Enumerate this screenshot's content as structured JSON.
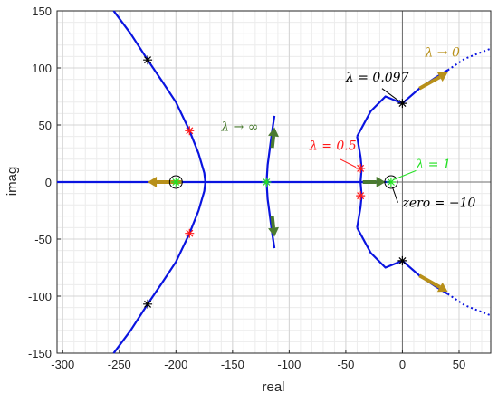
{
  "chart_data": {
    "type": "line",
    "title": "",
    "xlabel": "real",
    "ylabel": "imag",
    "xlim": [
      -305,
      78
    ],
    "ylim": [
      -150,
      150
    ],
    "grid": "major and minor",
    "x_ticks": [
      -300,
      -250,
      -200,
      -150,
      -100,
      -50,
      0,
      50
    ],
    "y_ticks": [
      -150,
      -100,
      -50,
      0,
      50,
      100,
      150
    ],
    "x_tick_labels": [
      "-300",
      "-250",
      "-200",
      "-150",
      "-100",
      "-50",
      "0",
      "50"
    ],
    "y_tick_labels": [
      "-150",
      "-100",
      "-50",
      "0",
      "50",
      "100",
      "150"
    ],
    "colors": {
      "locus": "#0a14e0",
      "arrow": "#b8901a",
      "green_arrow": "#4a7a30",
      "red_marker": "#ff1a1a",
      "black_marker": "#000000",
      "green_marker": "#22e022",
      "grid_minor": "#ececec",
      "grid_major": "#d4d4d4",
      "axis_line": "#6e6e6e"
    },
    "series": [
      {
        "points": [
          [
            -255,
            150
          ],
          [
            -240,
            130
          ],
          [
            -225,
            107
          ],
          [
            -212,
            88
          ],
          [
            -200,
            70
          ],
          [
            -188,
            45
          ],
          [
            -180,
            25
          ],
          [
            -175,
            8
          ],
          [
            -174,
            0
          ],
          [
            -175,
            -8
          ],
          [
            -180,
            -25
          ],
          [
            -188,
            -45
          ],
          [
            -200,
            -70
          ],
          [
            -212,
            -88
          ],
          [
            -225,
            -107
          ],
          [
            -240,
            -130
          ],
          [
            -255,
            -150
          ]
        ]
      },
      {
        "points": [
          [
            -113,
            58
          ],
          [
            -115,
            45
          ],
          [
            -117,
            30
          ],
          [
            -119,
            15
          ],
          [
            -120,
            0
          ],
          [
            -119,
            -15
          ],
          [
            -117,
            -30
          ],
          [
            -115,
            -45
          ],
          [
            -113,
            -58
          ]
        ]
      },
      {
        "points": [
          [
            -305,
            0
          ],
          [
            -10,
            0
          ]
        ]
      },
      {
        "points": [
          [
            -40,
            40
          ],
          [
            -37,
            22
          ],
          [
            -36,
            12
          ],
          [
            -37,
            0
          ],
          [
            -36,
            -12
          ],
          [
            -37,
            -22
          ],
          [
            -40,
            -40
          ]
        ]
      },
      {
        "points": [
          [
            -40,
            40
          ],
          [
            -28,
            62
          ],
          [
            -15,
            75
          ],
          [
            0,
            69
          ],
          [
            15,
            82
          ],
          [
            30,
            92
          ],
          [
            40,
            98
          ]
        ],
        "dotted_tail": [
          [
            40,
            98
          ],
          [
            55,
            108
          ],
          [
            78,
            117
          ]
        ]
      },
      {
        "points": [
          [
            -40,
            -40
          ],
          [
            -28,
            -62
          ],
          [
            -15,
            -75
          ],
          [
            0,
            -69
          ],
          [
            15,
            -82
          ],
          [
            30,
            -92
          ],
          [
            40,
            -98
          ]
        ],
        "dotted_tail": [
          [
            40,
            -98
          ],
          [
            55,
            -108
          ],
          [
            78,
            -117
          ]
        ]
      }
    ],
    "markers": {
      "poles_open": [
        [
          -200,
          0
        ],
        [
          -10,
          0
        ]
      ],
      "green_stars": [
        [
          -200,
          0
        ],
        [
          -120,
          0
        ],
        [
          -10,
          0
        ]
      ],
      "red_stars": [
        [
          -188,
          45
        ],
        [
          -188,
          -45
        ],
        [
          -37,
          12
        ],
        [
          -37,
          -12
        ]
      ],
      "black_stars": [
        [
          -225,
          107
        ],
        [
          -225,
          -107
        ],
        [
          0,
          69
        ],
        [
          0,
          -69
        ]
      ]
    },
    "annotations": [
      {
        "text": "λ → 0",
        "x": 20,
        "y": 110,
        "color": "#b8901a"
      },
      {
        "text": "λ = 0.097",
        "x": -50,
        "y": 88,
        "color": "#000000"
      },
      {
        "text": "λ → ∞",
        "x": -160,
        "y": 45,
        "color": "#4a7a30"
      },
      {
        "text": "λ = 0.5",
        "x": -82,
        "y": 28,
        "color": "#ff1a1a"
      },
      {
        "text": "λ = 1",
        "x": 12,
        "y": 12,
        "color": "#22e022"
      },
      {
        "text": "zero = −10",
        "x": 0,
        "y": -22,
        "color": "#000000"
      }
    ]
  }
}
